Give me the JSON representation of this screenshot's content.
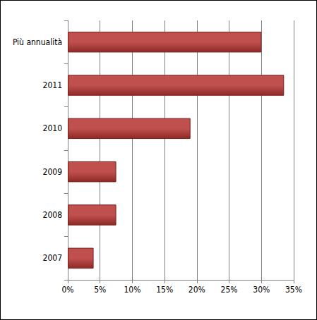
{
  "chart_data": {
    "type": "bar",
    "orientation": "horizontal",
    "categories": [
      "2007",
      "2008",
      "2009",
      "2010",
      "2011",
      "Più annualità"
    ],
    "values": [
      4,
      7.5,
      7.5,
      19,
      33.5,
      30
    ],
    "color": "#c0504d",
    "xlim": [
      0,
      35
    ],
    "xticks": [
      {
        "value": 0,
        "label": "0%"
      },
      {
        "value": 5,
        "label": "5%"
      },
      {
        "value": 10,
        "label": "10%"
      },
      {
        "value": 15,
        "label": "15%"
      },
      {
        "value": 20,
        "label": "20%"
      },
      {
        "value": 25,
        "label": "25%"
      },
      {
        "value": 30,
        "label": "30%"
      },
      {
        "value": 35,
        "label": "35%"
      }
    ],
    "grid": true
  }
}
